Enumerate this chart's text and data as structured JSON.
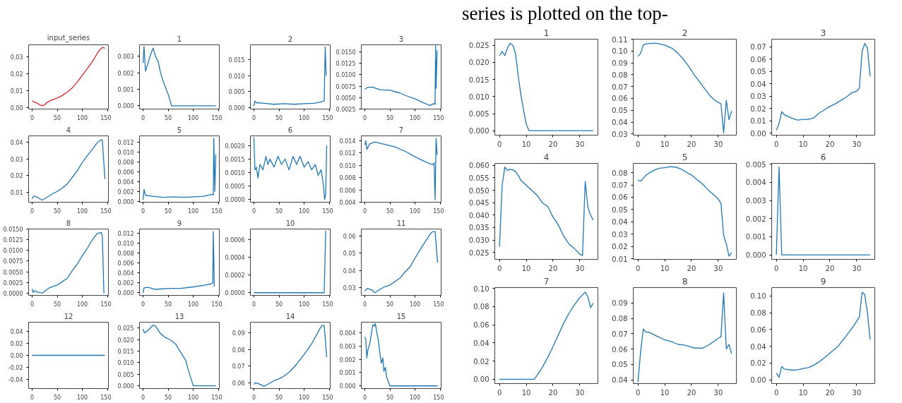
{
  "chart_data": [
    {
      "type": "line",
      "title": "input_series",
      "x": [
        0,
        5,
        10,
        15,
        20,
        25,
        30,
        40,
        50,
        60,
        70,
        80,
        90,
        100,
        110,
        120,
        130,
        135,
        140,
        145
      ],
      "series": [
        {
          "color": "#d62728",
          "values": [
            0.004,
            0.003,
            0.0025,
            0.0015,
            0.001,
            0.0015,
            0.003,
            0.0045,
            0.0055,
            0.007,
            0.009,
            0.0115,
            0.015,
            0.019,
            0.023,
            0.027,
            0.032,
            0.034,
            0.0355,
            0.035
          ]
        }
      ],
      "xlim": [
        -7,
        152
      ],
      "xticks": [
        0,
        50,
        100,
        150
      ],
      "ylim": [
        -0.001,
        0.037
      ],
      "yticks": [
        {
          "value": 0,
          "label": "0.00"
        },
        {
          "value": 0.01,
          "label": "0.01"
        },
        {
          "value": 0.02,
          "label": "0.02"
        },
        {
          "value": 0.03,
          "label": "0.03"
        }
      ]
    },
    {
      "type": "line",
      "title": "1",
      "x": [
        0,
        2,
        5,
        10,
        15,
        20,
        25,
        30,
        35,
        40,
        45,
        50,
        55,
        57,
        145
      ],
      "series": [
        {
          "color": "#1f77b4",
          "values": [
            0.0026,
            0.0036,
            0.0021,
            0.0026,
            0.0031,
            0.0035,
            0.003,
            0.0027,
            0.002,
            0.0015,
            0.0011,
            0.0007,
            0.0002,
            0,
            0
          ]
        }
      ],
      "xlim": [
        -7,
        152
      ],
      "xticks": [
        0,
        50,
        100,
        150
      ],
      "ylim": [
        -0.0002,
        0.0037
      ],
      "yticks": [
        {
          "value": 0,
          "label": "0.000"
        },
        {
          "value": 0.001,
          "label": "0.001"
        },
        {
          "value": 0.002,
          "label": "0.002"
        },
        {
          "value": 0.003,
          "label": "0.003"
        }
      ]
    },
    {
      "type": "line",
      "title": "2",
      "x": [
        0,
        2,
        5,
        20,
        40,
        60,
        80,
        100,
        120,
        135,
        140,
        142,
        144
      ],
      "series": [
        {
          "color": "#1f77b4",
          "values": [
            0.0005,
            0.002,
            0.0015,
            0.0013,
            0.001,
            0.0012,
            0.001,
            0.0012,
            0.0013,
            0.0018,
            0.002,
            0.019,
            0.01
          ]
        }
      ],
      "xlim": [
        -7,
        152
      ],
      "xticks": [
        0,
        50,
        100,
        150
      ],
      "ylim": [
        -0.0005,
        0.0197
      ],
      "yticks": [
        {
          "value": 0,
          "label": "0.000"
        },
        {
          "value": 0.005,
          "label": "0.005"
        },
        {
          "value": 0.01,
          "label": "0.010"
        },
        {
          "value": 0.015,
          "label": "0.015"
        }
      ]
    },
    {
      "type": "line",
      "title": "3",
      "x": [
        0,
        5,
        15,
        30,
        50,
        70,
        80,
        100,
        120,
        130,
        138,
        140,
        141,
        142,
        144
      ],
      "series": [
        {
          "color": "#1f77b4",
          "values": [
            0.0068,
            0.0072,
            0.0073,
            0.0067,
            0.0066,
            0.006,
            0.0055,
            0.0047,
            0.0037,
            0.0033,
            0.0037,
            0.0035,
            0.0163,
            0.007,
            0.0153
          ]
        }
      ],
      "xlim": [
        -7,
        152
      ],
      "xticks": [
        0,
        50,
        100,
        150
      ],
      "ylim": [
        0.0025,
        0.0165
      ],
      "yticks": [
        {
          "value": 0.0025,
          "label": "0.0025"
        },
        {
          "value": 0.005,
          "label": "0.0050"
        },
        {
          "value": 0.0075,
          "label": "0.0075"
        },
        {
          "value": 0.01,
          "label": "0.0100"
        },
        {
          "value": 0.0125,
          "label": "0.0125"
        },
        {
          "value": 0.015,
          "label": "0.0150"
        }
      ]
    },
    {
      "type": "line",
      "title": "4",
      "x": [
        0,
        3,
        10,
        20,
        30,
        40,
        50,
        60,
        70,
        80,
        90,
        100,
        110,
        120,
        130,
        138,
        140,
        145
      ],
      "series": [
        {
          "color": "#1f77b4",
          "values": [
            0.006,
            0.0077,
            0.007,
            0.0053,
            0.007,
            0.009,
            0.0105,
            0.0125,
            0.015,
            0.019,
            0.023,
            0.028,
            0.032,
            0.036,
            0.04,
            0.0418,
            0.041,
            0.018
          ]
        }
      ],
      "xlim": [
        -7,
        152
      ],
      "xticks": [
        0,
        50,
        100,
        150
      ],
      "ylim": [
        0.004,
        0.044
      ],
      "yticks": [
        {
          "value": 0.01,
          "label": "0.01"
        },
        {
          "value": 0.02,
          "label": "0.02"
        },
        {
          "value": 0.03,
          "label": "0.03"
        },
        {
          "value": 0.04,
          "label": "0.04"
        }
      ]
    },
    {
      "type": "line",
      "title": "5",
      "x": [
        0,
        2,
        5,
        20,
        40,
        60,
        80,
        100,
        120,
        138,
        140,
        141,
        143,
        145
      ],
      "series": [
        {
          "color": "#1f77b4",
          "values": [
            0.0003,
            0.0024,
            0.0012,
            0.001,
            0.0008,
            0.0009,
            0.0008,
            0.0009,
            0.001,
            0.0014,
            0.0013,
            0.0128,
            0.002,
            0.0095
          ]
        }
      ],
      "xlim": [
        -7,
        152
      ],
      "xticks": [
        0,
        50,
        100,
        150
      ],
      "ylim": [
        -0.0002,
        0.0133
      ],
      "yticks": [
        {
          "value": 0,
          "label": "0.000"
        },
        {
          "value": 0.002,
          "label": "0.002"
        },
        {
          "value": 0.004,
          "label": "0.004"
        },
        {
          "value": 0.006,
          "label": "0.006"
        },
        {
          "value": 0.008,
          "label": "0.008"
        },
        {
          "value": 0.01,
          "label": "0.010"
        },
        {
          "value": 0.012,
          "label": "0.012"
        }
      ]
    },
    {
      "type": "line",
      "title": "6",
      "x": [
        0,
        2,
        5,
        8,
        12,
        18,
        24,
        28,
        32,
        40,
        48,
        55,
        62,
        70,
        78,
        85,
        92,
        100,
        108,
        115,
        122,
        128,
        134,
        138,
        141,
        143,
        145
      ],
      "series": [
        {
          "color": "#1f77b4",
          "values": [
            0.0023,
            0.0011,
            0.0012,
            0.0008,
            0.0013,
            0.0011,
            0.0016,
            0.0013,
            0.0015,
            0.0012,
            0.0016,
            0.0013,
            0.0015,
            0.0011,
            0.0016,
            0.0013,
            0.0016,
            0.0012,
            0.0014,
            0.0011,
            0.0013,
            0.0009,
            0.0011,
            0.0006,
            0,
            0.0002,
            0.002
          ]
        }
      ],
      "xlim": [
        -7,
        152
      ],
      "xticks": [
        0,
        50,
        100,
        150
      ],
      "ylim": [
        -0.0001,
        0.00236
      ],
      "yticks": [
        {
          "value": 0,
          "label": "0.0000"
        },
        {
          "value": 0.0005,
          "label": "0.0005"
        },
        {
          "value": 0.001,
          "label": "0.0010"
        },
        {
          "value": 0.0015,
          "label": "0.0015"
        },
        {
          "value": 0.002,
          "label": "0.0020"
        }
      ]
    },
    {
      "type": "line",
      "title": "7",
      "x": [
        0,
        2,
        4,
        10,
        20,
        40,
        60,
        80,
        100,
        120,
        135,
        138,
        140,
        142,
        144
      ],
      "series": [
        {
          "color": "#1f77b4",
          "values": [
            0.0133,
            0.014,
            0.0126,
            0.0135,
            0.0138,
            0.0134,
            0.013,
            0.0123,
            0.0114,
            0.0106,
            0.0101,
            0.0104,
            0.0044,
            0.0144,
            0.0117
          ]
        }
      ],
      "xlim": [
        -7,
        152
      ],
      "xticks": [
        0,
        50,
        100,
        150
      ],
      "ylim": [
        0.004,
        0.0148
      ],
      "yticks": [
        {
          "value": 0.004,
          "label": "0.004"
        },
        {
          "value": 0.006,
          "label": "0.006"
        },
        {
          "value": 0.008,
          "label": "0.008"
        },
        {
          "value": 0.01,
          "label": "0.010"
        },
        {
          "value": 0.012,
          "label": "0.012"
        },
        {
          "value": 0.014,
          "label": "0.014"
        }
      ]
    },
    {
      "type": "line",
      "title": "8",
      "x": [
        0,
        2,
        5,
        10,
        20,
        25,
        35,
        50,
        60,
        70,
        80,
        90,
        100,
        110,
        120,
        130,
        138,
        140,
        143
      ],
      "series": [
        {
          "color": "#1f77b4",
          "values": [
            0.001,
            0.0002,
            0.0006,
            0.0003,
            0,
            0.0005,
            0.0013,
            0.0019,
            0.0027,
            0.0035,
            0.0053,
            0.0068,
            0.0088,
            0.0105,
            0.0125,
            0.014,
            0.0142,
            0.013,
            0
          ]
        }
      ],
      "xlim": [
        -7,
        152
      ],
      "xticks": [
        0,
        50,
        100,
        150
      ],
      "ylim": [
        -0.0005,
        0.015
      ],
      "yticks": [
        {
          "value": 0,
          "label": "0.0000"
        },
        {
          "value": 0.0025,
          "label": "0.0025"
        },
        {
          "value": 0.005,
          "label": "0.0050"
        },
        {
          "value": 0.0075,
          "label": "0.0075"
        },
        {
          "value": 0.01,
          "label": "0.0100"
        },
        {
          "value": 0.0125,
          "label": "0.0125"
        },
        {
          "value": 0.015,
          "label": "0.0150"
        }
      ]
    },
    {
      "type": "line",
      "title": "9",
      "x": [
        0,
        2,
        10,
        25,
        50,
        75,
        100,
        120,
        135,
        139,
        140,
        142
      ],
      "series": [
        {
          "color": "#1f77b4",
          "values": [
            0,
            0.001,
            0.0011,
            0.0007,
            0.0009,
            0.0009,
            0.0012,
            0.0015,
            0.0018,
            0.002,
            0.0123,
            0.0013
          ]
        }
      ],
      "xlim": [
        -7,
        152
      ],
      "xticks": [
        0,
        50,
        100,
        150
      ],
      "ylim": [
        -0.0005,
        0.0128
      ],
      "yticks": [
        {
          "value": 0,
          "label": "0.000"
        },
        {
          "value": 0.002,
          "label": "0.002"
        },
        {
          "value": 0.004,
          "label": "0.004"
        },
        {
          "value": 0.006,
          "label": "0.006"
        },
        {
          "value": 0.008,
          "label": "0.008"
        },
        {
          "value": 0.01,
          "label": "0.010"
        },
        {
          "value": 0.012,
          "label": "0.012"
        }
      ]
    },
    {
      "type": "line",
      "title": "10",
      "x": [
        0,
        140,
        143
      ],
      "series": [
        {
          "color": "#1f77b4",
          "values": [
            0,
            0,
            0.0007
          ]
        }
      ],
      "xlim": [
        -7,
        152
      ],
      "xticks": [
        0,
        50,
        100,
        150
      ],
      "ylim": [
        -3e-05,
        0.00072
      ],
      "yticks": [
        {
          "value": 0,
          "label": "0.0000"
        },
        {
          "value": 0.0002,
          "label": "0.0002"
        },
        {
          "value": 0.0004,
          "label": "0.0004"
        },
        {
          "value": 0.0006,
          "label": "0.0006"
        }
      ]
    },
    {
      "type": "line",
      "title": "11",
      "x": [
        0,
        5,
        15,
        20,
        30,
        40,
        50,
        60,
        70,
        80,
        90,
        100,
        110,
        120,
        130,
        135,
        140,
        145
      ],
      "series": [
        {
          "color": "#1f77b4",
          "values": [
            0.028,
            0.0295,
            0.0285,
            0.027,
            0.029,
            0.0305,
            0.0315,
            0.0335,
            0.0355,
            0.039,
            0.042,
            0.047,
            0.052,
            0.0565,
            0.061,
            0.0625,
            0.0625,
            0.0445
          ]
        }
      ],
      "xlim": [
        -7,
        152
      ],
      "xticks": [
        0,
        50,
        100,
        150
      ],
      "ylim": [
        0.0255,
        0.064
      ],
      "yticks": [
        {
          "value": 0.03,
          "label": "0.03"
        },
        {
          "value": 0.04,
          "label": "0.04"
        },
        {
          "value": 0.05,
          "label": "0.05"
        },
        {
          "value": 0.06,
          "label": "0.06"
        }
      ]
    },
    {
      "type": "line",
      "title": "12",
      "x": [
        0,
        145
      ],
      "series": [
        {
          "color": "#1f77b4",
          "values": [
            0,
            0
          ]
        }
      ],
      "xlim": [
        -7,
        152
      ],
      "xticks": [
        0,
        50,
        100,
        150
      ],
      "ylim": [
        -0.055,
        0.055
      ],
      "yticks": [
        {
          "value": -0.04,
          "label": "-0.04"
        },
        {
          "value": -0.02,
          "label": "-0.02"
        },
        {
          "value": 0,
          "label": "0.00"
        },
        {
          "value": 0.02,
          "label": "0.02"
        },
        {
          "value": 0.04,
          "label": "0.04"
        }
      ]
    },
    {
      "type": "line",
      "title": "13",
      "x": [
        0,
        3,
        10,
        20,
        25,
        35,
        45,
        55,
        65,
        75,
        85,
        90,
        95,
        100,
        145
      ],
      "series": [
        {
          "color": "#1f77b4",
          "values": [
            0.0245,
            0.0228,
            0.024,
            0.0262,
            0.0258,
            0.0225,
            0.0208,
            0.0198,
            0.018,
            0.0145,
            0.011,
            0.007,
            0.0035,
            0,
            0
          ]
        }
      ],
      "xlim": [
        -7,
        152
      ],
      "xticks": [
        0,
        50,
        100,
        150
      ],
      "ylim": [
        -0.0012,
        0.0275
      ],
      "yticks": [
        {
          "value": 0,
          "label": "0.000"
        },
        {
          "value": 0.005,
          "label": "0.005"
        },
        {
          "value": 0.01,
          "label": "0.010"
        },
        {
          "value": 0.015,
          "label": "0.015"
        },
        {
          "value": 0.02,
          "label": "0.020"
        },
        {
          "value": 0.025,
          "label": "0.025"
        }
      ]
    },
    {
      "type": "line",
      "title": "14",
      "x": [
        0,
        3,
        10,
        20,
        30,
        40,
        55,
        70,
        85,
        100,
        115,
        125,
        135,
        140,
        145
      ],
      "series": [
        {
          "color": "#1f77b4",
          "values": [
            0.059,
            0.06,
            0.0593,
            0.0578,
            0.0595,
            0.0612,
            0.063,
            0.0662,
            0.0712,
            0.077,
            0.0835,
            0.089,
            0.0945,
            0.0945,
            0.0755
          ]
        }
      ],
      "xlim": [
        -7,
        152
      ],
      "xticks": [
        0,
        50,
        100,
        150
      ],
      "ylim": [
        0.0565,
        0.0965
      ],
      "yticks": [
        {
          "value": 0.06,
          "label": "0.06"
        },
        {
          "value": 0.07,
          "label": "0.07"
        },
        {
          "value": 0.08,
          "label": "0.08"
        },
        {
          "value": 0.09,
          "label": "0.09"
        }
      ]
    },
    {
      "type": "line",
      "title": "15",
      "x": [
        0,
        2,
        4,
        6,
        10,
        13,
        16,
        19,
        21,
        24,
        27,
        30,
        33,
        36,
        38,
        41,
        43,
        45,
        50,
        145
      ],
      "series": [
        {
          "color": "#1f77b4",
          "values": [
            0.0037,
            0.0035,
            0.0021,
            0.0027,
            0.0032,
            0.0039,
            0.0046,
            0.0045,
            0.0047,
            0.004,
            0.0034,
            0.0025,
            0.0017,
            0.0021,
            0.0011,
            0.0014,
            0.0008,
            0.0005,
            0,
            0
          ]
        }
      ],
      "xlim": [
        -7,
        152
      ],
      "xticks": [
        0,
        50,
        100,
        150
      ],
      "ylim": [
        -0.0002,
        0.0048
      ],
      "yticks": [
        {
          "value": 0,
          "label": "0.000"
        },
        {
          "value": 0.001,
          "label": "0.001"
        },
        {
          "value": 0.002,
          "label": "0.002"
        },
        {
          "value": 0.003,
          "label": "0.003"
        },
        {
          "value": 0.004,
          "label": "0.004"
        }
      ]
    },
    {
      "type": "line",
      "title": "1",
      "annotations": [
        "series is plotted on the top-"
      ],
      "x": [
        0,
        1,
        2,
        3,
        4,
        5,
        6,
        7,
        8,
        9,
        10,
        11,
        35
      ],
      "series": [
        {
          "color": "#1f77b4",
          "values": [
            0.022,
            0.0232,
            0.022,
            0.0243,
            0.0256,
            0.025,
            0.0225,
            0.016,
            0.0105,
            0.006,
            0.002,
            0,
            0
          ]
        }
      ],
      "xlim": [
        -1.75,
        36.75
      ],
      "xticks": [
        0,
        10,
        20,
        30
      ],
      "ylim": [
        -0.0013,
        0.0268
      ],
      "yticks": [
        {
          "value": 0,
          "label": "0.000"
        },
        {
          "value": 0.005,
          "label": "0.005"
        },
        {
          "value": 0.01,
          "label": "0.010"
        },
        {
          "value": 0.015,
          "label": "0.015"
        },
        {
          "value": 0.02,
          "label": "0.020"
        },
        {
          "value": 0.025,
          "label": "0.025"
        }
      ]
    },
    {
      "type": "line",
      "title": "2",
      "x": [
        0,
        1,
        2,
        3,
        5,
        7,
        10,
        13,
        15,
        17,
        19,
        21,
        23,
        25,
        27,
        29,
        31,
        32,
        33,
        34,
        35
      ],
      "series": [
        {
          "color": "#1f77b4",
          "values": [
            0.0955,
            0.098,
            0.105,
            0.106,
            0.1065,
            0.1065,
            0.105,
            0.102,
            0.098,
            0.093,
            0.087,
            0.08,
            0.074,
            0.068,
            0.062,
            0.058,
            0.0555,
            0.031,
            0.0585,
            0.042,
            0.0495
          ]
        }
      ],
      "xlim": [
        -1.75,
        36.75
      ],
      "xticks": [
        0,
        10,
        20,
        30
      ],
      "ylim": [
        0.029,
        0.11
      ],
      "yticks": [
        {
          "value": 0.03,
          "label": "0.03"
        },
        {
          "value": 0.04,
          "label": "0.04"
        },
        {
          "value": 0.05,
          "label": "0.05"
        },
        {
          "value": 0.06,
          "label": "0.06"
        },
        {
          "value": 0.07,
          "label": "0.07"
        },
        {
          "value": 0.08,
          "label": "0.08"
        },
        {
          "value": 0.09,
          "label": "0.09"
        },
        {
          "value": 0.1,
          "label": "0.10"
        },
        {
          "value": 0.11,
          "label": "0.11"
        }
      ]
    },
    {
      "type": "line",
      "title": "3",
      "x": [
        0,
        1,
        2,
        3,
        4,
        6,
        8,
        10,
        12,
        14,
        16,
        18,
        20,
        22,
        24,
        26,
        28,
        30,
        31,
        32,
        33,
        34,
        35
      ],
      "series": [
        {
          "color": "#1f77b4",
          "values": [
            0.0025,
            0.008,
            0.0175,
            0.015,
            0.014,
            0.012,
            0.0107,
            0.0113,
            0.0112,
            0.0125,
            0.0163,
            0.019,
            0.0218,
            0.0238,
            0.0265,
            0.029,
            0.0325,
            0.034,
            0.0365,
            0.066,
            0.0725,
            0.069,
            0.046
          ]
        }
      ],
      "xlim": [
        -1.75,
        36.75
      ],
      "xticks": [
        0,
        10,
        20,
        30
      ],
      "ylim": [
        -0.0015,
        0.076
      ],
      "yticks": [
        {
          "value": 0,
          "label": "0.00"
        },
        {
          "value": 0.01,
          "label": "0.01"
        },
        {
          "value": 0.02,
          "label": "0.02"
        },
        {
          "value": 0.03,
          "label": "0.03"
        },
        {
          "value": 0.04,
          "label": "0.04"
        },
        {
          "value": 0.05,
          "label": "0.05"
        },
        {
          "value": 0.06,
          "label": "0.06"
        },
        {
          "value": 0.07,
          "label": "0.07"
        }
      ]
    },
    {
      "type": "line",
      "title": "4",
      "x": [
        0,
        1,
        2,
        3,
        4,
        5,
        6,
        7,
        8,
        10,
        12,
        14,
        16,
        18,
        20,
        22,
        24,
        26,
        28,
        30,
        31,
        32,
        33,
        34,
        35
      ],
      "series": [
        {
          "color": "#1f77b4",
          "values": [
            0.0273,
            0.052,
            0.0593,
            0.058,
            0.0584,
            0.0582,
            0.0575,
            0.056,
            0.054,
            0.052,
            0.05,
            0.048,
            0.045,
            0.0435,
            0.0392,
            0.036,
            0.0315,
            0.0283,
            0.0265,
            0.0243,
            0.0238,
            0.0535,
            0.0432,
            0.04,
            0.038
          ]
        }
      ],
      "xlim": [
        -1.75,
        36.75
      ],
      "xticks": [
        0,
        10,
        20,
        30
      ],
      "ylim": [
        0.0222,
        0.0608
      ],
      "yticks": [
        {
          "value": 0.025,
          "label": "0.025"
        },
        {
          "value": 0.03,
          "label": "0.030"
        },
        {
          "value": 0.035,
          "label": "0.035"
        },
        {
          "value": 0.04,
          "label": "0.040"
        },
        {
          "value": 0.045,
          "label": "0.045"
        },
        {
          "value": 0.05,
          "label": "0.050"
        },
        {
          "value": 0.055,
          "label": "0.055"
        },
        {
          "value": 0.06,
          "label": "0.060"
        }
      ]
    },
    {
      "type": "line",
      "title": "5",
      "x": [
        0,
        1,
        3,
        6,
        8,
        10,
        12,
        14,
        16,
        18,
        20,
        22,
        24,
        26,
        28,
        30,
        31,
        32,
        33,
        34,
        35
      ],
      "series": [
        {
          "color": "#1f77b4",
          "values": [
            0.074,
            0.073,
            0.078,
            0.082,
            0.0835,
            0.084,
            0.0848,
            0.0845,
            0.083,
            0.0805,
            0.078,
            0.0745,
            0.071,
            0.0665,
            0.0625,
            0.0585,
            0.055,
            0.029,
            0.022,
            0.0122,
            0.015
          ]
        }
      ],
      "xlim": [
        -1.75,
        36.75
      ],
      "xticks": [
        0,
        10,
        20,
        30
      ],
      "ylim": [
        0.0095,
        0.0875
      ],
      "yticks": [
        {
          "value": 0.01,
          "label": "0.01"
        },
        {
          "value": 0.02,
          "label": "0.02"
        },
        {
          "value": 0.03,
          "label": "0.03"
        },
        {
          "value": 0.04,
          "label": "0.04"
        },
        {
          "value": 0.05,
          "label": "0.05"
        },
        {
          "value": 0.06,
          "label": "0.06"
        },
        {
          "value": 0.07,
          "label": "0.07"
        },
        {
          "value": 0.08,
          "label": "0.08"
        }
      ]
    },
    {
      "type": "line",
      "title": "6",
      "x": [
        0,
        1,
        2,
        35
      ],
      "series": [
        {
          "color": "#1f77b4",
          "values": [
            0,
            0.00485,
            0,
            0
          ]
        }
      ],
      "xlim": [
        -1.75,
        36.75
      ],
      "xticks": [
        0,
        10,
        20,
        30
      ],
      "ylim": [
        -0.00025,
        0.00505
      ],
      "yticks": [
        {
          "value": 0,
          "label": "0.000"
        },
        {
          "value": 0.001,
          "label": "0.001"
        },
        {
          "value": 0.002,
          "label": "0.002"
        },
        {
          "value": 0.003,
          "label": "0.003"
        },
        {
          "value": 0.004,
          "label": "0.004"
        },
        {
          "value": 0.005,
          "label": "0.005"
        }
      ]
    },
    {
      "type": "line",
      "title": "7",
      "x": [
        0,
        13,
        14,
        16,
        18,
        20,
        22,
        24,
        26,
        28,
        30,
        32,
        33,
        34,
        35
      ],
      "series": [
        {
          "color": "#1f77b4",
          "values": [
            0,
            0,
            0.004,
            0.013,
            0.024,
            0.036,
            0.049,
            0.062,
            0.073,
            0.082,
            0.09,
            0.096,
            0.091,
            0.079,
            0.084
          ]
        }
      ],
      "xlim": [
        -1.75,
        36.75
      ],
      "xticks": [
        0,
        10,
        20,
        30
      ],
      "ylim": [
        -0.0048,
        0.101
      ],
      "yticks": [
        {
          "value": 0,
          "label": "0.00"
        },
        {
          "value": 0.02,
          "label": "0.02"
        },
        {
          "value": 0.04,
          "label": "0.04"
        },
        {
          "value": 0.06,
          "label": "0.06"
        },
        {
          "value": 0.08,
          "label": "0.08"
        },
        {
          "value": 0.1,
          "label": "0.10"
        }
      ]
    },
    {
      "type": "line",
      "title": "8",
      "x": [
        0,
        1,
        2,
        3,
        4,
        7,
        10,
        13,
        15,
        17,
        19,
        21,
        24,
        26,
        28,
        30,
        31,
        32,
        33,
        34,
        35
      ],
      "series": [
        {
          "color": "#1f77b4",
          "values": [
            0.0385,
            0.058,
            0.073,
            0.071,
            0.071,
            0.0685,
            0.066,
            0.0645,
            0.063,
            0.0627,
            0.0618,
            0.0607,
            0.0605,
            0.0622,
            0.0645,
            0.067,
            0.068,
            0.0965,
            0.06,
            0.063,
            0.057
          ]
        }
      ],
      "xlim": [
        -1.75,
        36.75
      ],
      "xticks": [
        0,
        10,
        20,
        30
      ],
      "ylim": [
        0.0375,
        0.1
      ],
      "yticks": [
        {
          "value": 0.04,
          "label": "0.04"
        },
        {
          "value": 0.05,
          "label": "0.05"
        },
        {
          "value": 0.06,
          "label": "0.06"
        },
        {
          "value": 0.07,
          "label": "0.07"
        },
        {
          "value": 0.08,
          "label": "0.08"
        },
        {
          "value": 0.09,
          "label": "0.09"
        }
      ]
    },
    {
      "type": "line",
      "title": "9",
      "x": [
        0,
        1,
        2,
        3,
        6,
        8,
        10,
        12,
        14,
        16,
        18,
        20,
        23,
        26,
        29,
        31,
        32,
        33,
        34,
        35
      ],
      "series": [
        {
          "color": "#1f77b4",
          "values": [
            0.008,
            0.003,
            0.0158,
            0.0128,
            0.0115,
            0.012,
            0.0135,
            0.0145,
            0.0175,
            0.0215,
            0.0265,
            0.032,
            0.04,
            0.052,
            0.065,
            0.075,
            0.1045,
            0.1015,
            0.08,
            0.048
          ]
        }
      ],
      "xlim": [
        -1.75,
        36.75
      ],
      "xticks": [
        0,
        10,
        20,
        30
      ],
      "ylim": [
        -0.0045,
        0.11
      ],
      "yticks": [
        {
          "value": 0,
          "label": "0.00"
        },
        {
          "value": 0.02,
          "label": "0.02"
        },
        {
          "value": 0.04,
          "label": "0.04"
        },
        {
          "value": 0.06,
          "label": "0.06"
        },
        {
          "value": 0.08,
          "label": "0.08"
        },
        {
          "value": 0.1,
          "label": "0.10"
        }
      ]
    }
  ]
}
